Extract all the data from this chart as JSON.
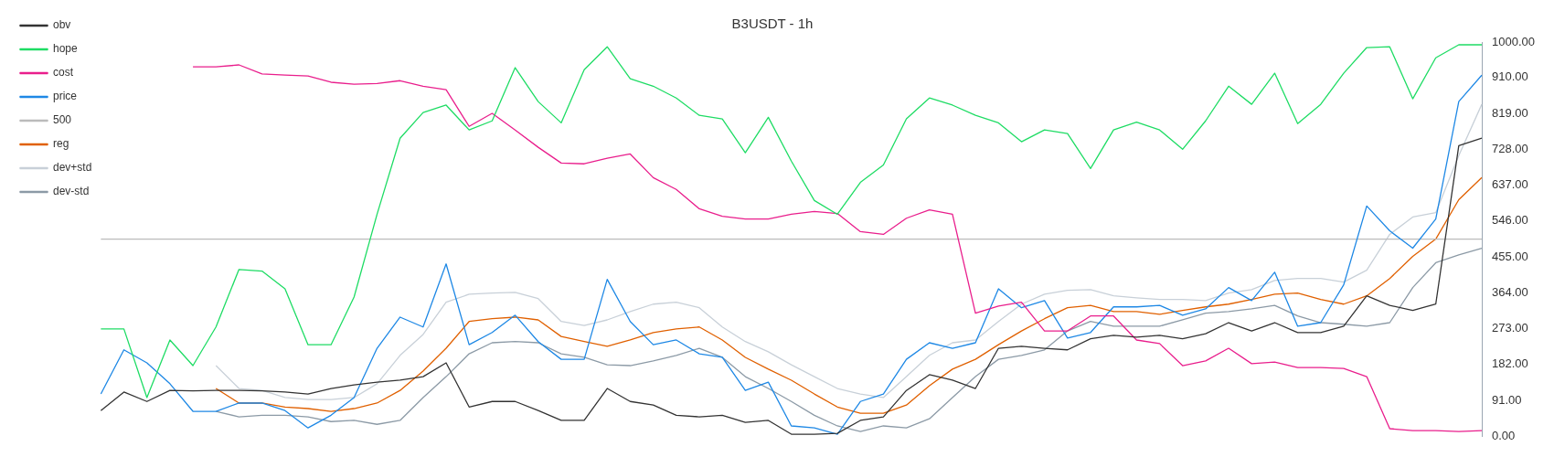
{
  "chart_data": {
    "type": "line",
    "title": "B3USDT - 1h",
    "categories": [
      null,
      null,
      null,
      null,
      null,
      null,
      null,
      null,
      null,
      null,
      null,
      null,
      null,
      null,
      null,
      null,
      null,
      null,
      null,
      null,
      null,
      null,
      null,
      null,
      null,
      null,
      null,
      null,
      null,
      null,
      null,
      null,
      null,
      null,
      null,
      null,
      null,
      null,
      null,
      null,
      null,
      null,
      null,
      null,
      null,
      null,
      null,
      null,
      null,
      null,
      null,
      null,
      null,
      null,
      null,
      null,
      null,
      null,
      null,
      null,
      null
    ],
    "series": [
      {
        "name": "obv",
        "color": "#333333",
        "values": [
          65,
          112,
          88,
          116,
          115,
          116,
          116,
          115,
          112,
          107,
          121,
          130,
          137,
          142,
          151,
          186,
          74,
          88,
          88,
          65,
          40,
          40,
          121,
          88,
          79,
          53,
          49,
          53,
          35,
          40,
          5,
          5,
          7,
          40,
          49,
          116,
          156,
          142,
          121,
          223,
          228,
          223,
          219,
          247,
          256,
          251,
          256,
          247,
          260,
          288,
          267,
          288,
          263,
          263,
          279,
          356,
          332,
          319,
          335,
          737,
          756
        ]
      },
      {
        "name": "hope",
        "color": "#1edc64",
        "values": [
          272,
          272,
          98,
          244,
          179,
          277,
          423,
          419,
          374,
          232,
          232,
          353,
          563,
          756,
          821,
          840,
          777,
          800,
          935,
          849,
          795,
          930,
          988,
          907,
          888,
          858,
          814,
          805,
          719,
          809,
          698,
          598,
          563,
          644,
          688,
          805,
          858,
          840,
          814,
          795,
          747,
          777,
          768,
          679,
          777,
          797,
          777,
          728,
          800,
          888,
          842,
          921,
          793,
          842,
          921,
          986,
          988,
          856,
          960,
          993,
          993
        ]
      },
      {
        "name": "cost",
        "color": "#e91e8c",
        "values": [
          null,
          null,
          null,
          null,
          937,
          937,
          942,
          919,
          916,
          914,
          898,
          893,
          895,
          902,
          888,
          879,
          786,
          819,
          777,
          733,
          693,
          691,
          705,
          716,
          656,
          626,
          577,
          558,
          551,
          551,
          563,
          570,
          565,
          519,
          512,
          553,
          574,
          563,
          312,
          330,
          340,
          267,
          267,
          305,
          305,
          244,
          235,
          179,
          191,
          223,
          184,
          188,
          174,
          174,
          172,
          151,
          19,
          14,
          14,
          12,
          14
        ]
      },
      {
        "name": "price",
        "color": "#1e88e5",
        "values": [
          107,
          219,
          186,
          133,
          63,
          63,
          84,
          84,
          65,
          21,
          53,
          98,
          223,
          302,
          277,
          437,
          232,
          263,
          307,
          240,
          195,
          195,
          398,
          291,
          232,
          244,
          209,
          200,
          116,
          137,
          26,
          21,
          5,
          88,
          107,
          195,
          237,
          223,
          237,
          374,
          326,
          344,
          249,
          263,
          328,
          328,
          332,
          307,
          323,
          377,
          344,
          416,
          279,
          288,
          384,
          584,
          521,
          477,
          551,
          849,
          916
        ]
      },
      {
        "name": "500",
        "color": "#bbbbbb",
        "values": [
          500,
          500,
          500,
          500,
          500,
          500,
          500,
          500,
          500,
          500,
          500,
          500,
          500,
          500,
          500,
          500,
          500,
          500,
          500,
          500,
          500,
          500,
          500,
          500,
          500,
          500,
          500,
          500,
          500,
          500,
          500,
          500,
          500,
          500,
          500,
          500,
          500,
          500,
          500,
          500,
          500,
          500,
          500,
          500,
          500,
          500,
          500,
          500,
          500,
          500,
          500,
          500,
          500,
          500,
          500,
          500,
          500,
          500,
          500,
          500,
          500
        ]
      },
      {
        "name": "reg",
        "color": "#e06000",
        "values": [
          null,
          null,
          null,
          null,
          null,
          121,
          84,
          84,
          74,
          70,
          63,
          70,
          84,
          116,
          165,
          223,
          291,
          298,
          302,
          295,
          253,
          240,
          228,
          244,
          263,
          272,
          277,
          244,
          200,
          170,
          142,
          107,
          74,
          58,
          58,
          79,
          128,
          170,
          195,
          232,
          267,
          298,
          326,
          332,
          316,
          316,
          309,
          319,
          328,
          335,
          347,
          360,
          363,
          347,
          335,
          356,
          400,
          456,
          500,
          600,
          656
        ]
      },
      {
        "name": "dev+std",
        "color": "#c8d0d8",
        "values": [
          null,
          null,
          null,
          null,
          null,
          179,
          121,
          116,
          98,
          93,
          93,
          98,
          133,
          205,
          258,
          340,
          360,
          363,
          365,
          349,
          291,
          281,
          295,
          316,
          335,
          340,
          326,
          277,
          240,
          214,
          181,
          151,
          121,
          107,
          98,
          151,
          205,
          237,
          244,
          291,
          335,
          360,
          370,
          372,
          356,
          351,
          347,
          347,
          344,
          363,
          372,
          395,
          400,
          400,
          391,
          421,
          512,
          556,
          567,
          712,
          842
        ]
      },
      {
        "name": "dev-std",
        "color": "#8c9aa6",
        "values": [
          null,
          null,
          null,
          null,
          null,
          63,
          49,
          53,
          53,
          49,
          37,
          40,
          30,
          40,
          98,
          151,
          209,
          237,
          240,
          237,
          209,
          200,
          181,
          179,
          191,
          205,
          223,
          200,
          151,
          121,
          88,
          53,
          26,
          12,
          26,
          21,
          44,
          98,
          151,
          195,
          205,
          219,
          267,
          291,
          279,
          279,
          279,
          295,
          312,
          316,
          323,
          332,
          305,
          288,
          284,
          279,
          288,
          377,
          440,
          460,
          477
        ]
      }
    ],
    "ylim": [
      0,
      1000
    ],
    "yticks": [
      {
        "value": 0,
        "label": "0.00"
      },
      {
        "value": 91,
        "label": "91.00"
      },
      {
        "value": 182,
        "label": "182.00"
      },
      {
        "value": 273,
        "label": "273.00"
      },
      {
        "value": 364,
        "label": "364.00"
      },
      {
        "value": 455,
        "label": "455.00"
      },
      {
        "value": 546,
        "label": "546.00"
      },
      {
        "value": 637,
        "label": "637.00"
      },
      {
        "value": 728,
        "label": "728.00"
      },
      {
        "value": 819,
        "label": "819.00"
      },
      {
        "value": 910,
        "label": "910.00"
      },
      {
        "value": 1000,
        "label": "1000.00"
      }
    ],
    "grid": false,
    "legend": "top left",
    "marker": "none",
    "line_style": "solid"
  }
}
